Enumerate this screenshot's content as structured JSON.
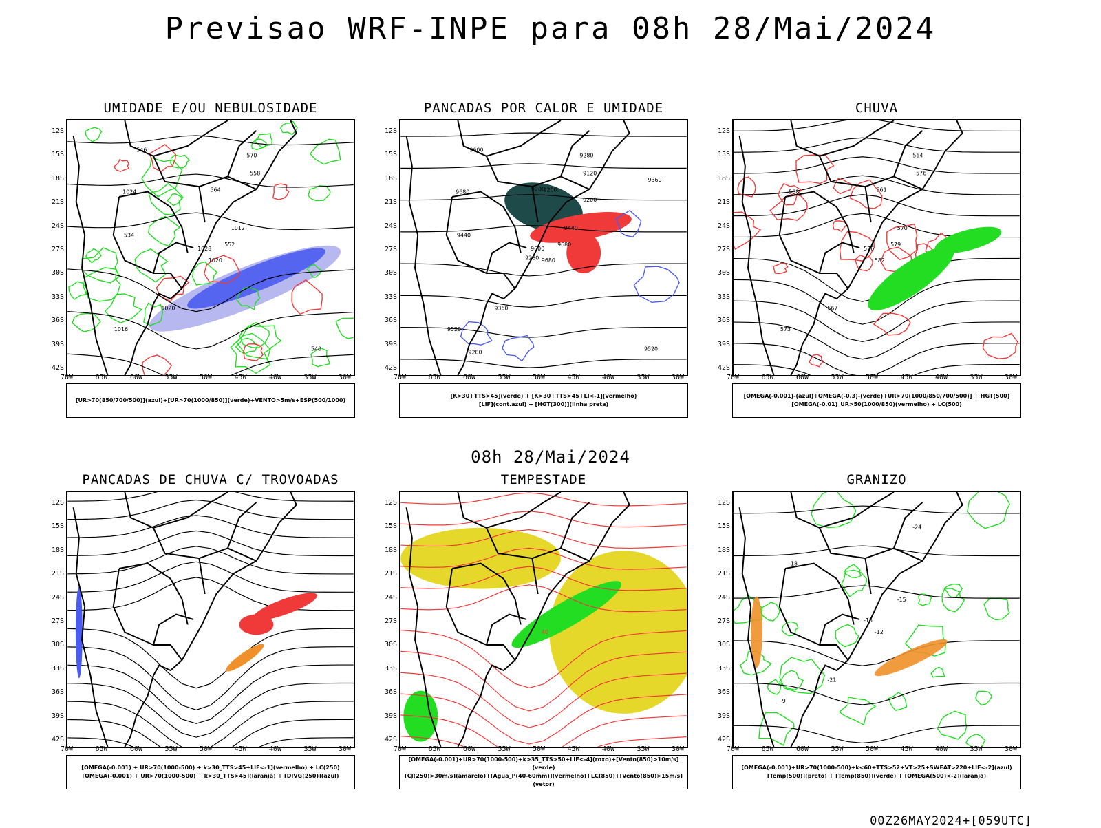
{
  "title": "Previsao WRF-INPE  para 08h 28/Mai/2024",
  "mid_title": "08h 28/Mai/2024",
  "footer": "00Z26MAY2024+[059UTC]",
  "lat_labels": [
    "12S",
    "15S",
    "18S",
    "21S",
    "24S",
    "27S",
    "30S",
    "33S",
    "36S",
    "39S",
    "42S"
  ],
  "lon_labels": [
    "70W",
    "65W",
    "60W",
    "55W",
    "50W",
    "45W",
    "40W",
    "35W",
    "30W"
  ],
  "colors": {
    "blue": "#4a5cf0",
    "green": "#22dd22",
    "red": "#f03a3a",
    "darkteal": "#1f4a4a",
    "yellow": "#e6d82a",
    "orange": "#f0902a",
    "lavender": "#b0b0f0"
  },
  "panels": [
    {
      "id": "umidade",
      "title": "UMIDADE E/OU NEBULOSIDADE",
      "legend": [
        "[UR>70(850/700/500)](azul)+[UR>70(1000/850)](verde)+VENTO>5m/s+ESP(500/1000)"
      ],
      "contour_labels": [
        "1020",
        "1024",
        "1028",
        "1016",
        "1012",
        "1020",
        "570",
        "564",
        "558",
        "552",
        "546",
        "540",
        "534"
      ]
    },
    {
      "id": "pancadas_calor",
      "title": "PANCADAS POR CALOR E UMIDADE",
      "legend": [
        "[K>30+TTS>45](verde) + [K>30+TTS>45+LI<-1](vermelho)",
        "[LIF](cont.azul) + [HGT(300)](linha preta)"
      ],
      "contour_labels": [
        "9680",
        "9680",
        "9600",
        "9520",
        "9440",
        "9360",
        "9280",
        "9200",
        "9120",
        "9680",
        "9600",
        "9520",
        "9440",
        "9360",
        "9280",
        "9200",
        "9280",
        "9200"
      ]
    },
    {
      "id": "chuva",
      "title": "CHUVA",
      "legend": [
        "[OMEGA(-0.001)-(azul)+OMEGA(-0.3)-(verde)+UR>70(1000/850/700/500)] + HGT(500)",
        "[OMEGA(-0.01)_UR>50(1000/850)(vermelho) + LC(500)"
      ],
      "contour_labels": [
        "582",
        "588",
        "576",
        "573",
        "570",
        "567",
        "564",
        "561",
        "576",
        "579"
      ]
    },
    {
      "id": "pancadas_trovoadas",
      "title": "PANCADAS DE CHUVA C/ TROVOADAS",
      "legend": [
        "[OMEGA(-0.001) + UR>70(1000-500) + k>30_TTS>45+LIF<-1](vermelho) + LC(250)",
        "[OMEGA(-0.001) + UR>70(1000-500) + k>30_TTS>45](laranja) + [DIVG(250)](azul)"
      ],
      "contour_labels": []
    },
    {
      "id": "tempestade",
      "title": "TEMPESTADE",
      "legend": [
        "[OMEGA(-0.001)+UR>70(1000-500)+k>35_TTS>50+LIF<-4](roxo)+[Vento(850)>10m/s](verde)",
        "[CJ(250)>30m/s](amarelo)+[Agua_P(40-60mm)](vermelho)+LC(850)+[Vento(850)>15m/s](vetor)"
      ],
      "contour_labels": [
        "40"
      ]
    },
    {
      "id": "granizo",
      "title": "GRANIZO",
      "legend": [
        "[OMEGA(-0.001)+UR>70(1000-500)+k<60+TTS>52+VT>25+SWEAT>220+LIF<-2](azul)",
        "[Temp(500)](preto) + [Temp(850)](verde) + [OMEGA(500)<-2](laranja)"
      ],
      "contour_labels": [
        "-12",
        "-18",
        "-15",
        "-9",
        "-15",
        "-21",
        "-24"
      ]
    }
  ]
}
